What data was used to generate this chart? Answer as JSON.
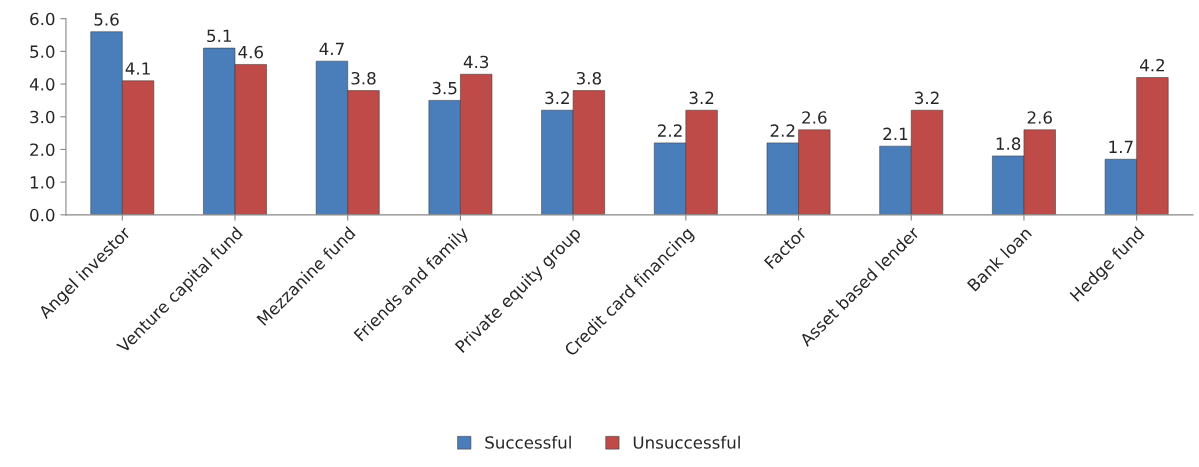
{
  "chart_data": {
    "type": "bar",
    "categories": [
      "Angel investor",
      "Venture capital fund",
      "Mezzanine fund",
      "Friends and family",
      "Private equity group",
      "Credit card financing",
      "Factor",
      "Asset based lender",
      "Bank loan",
      "Hedge fund"
    ],
    "series": [
      {
        "name": "Successful",
        "color": "#4a7ebb",
        "values": [
          5.6,
          5.1,
          4.7,
          3.5,
          3.2,
          2.2,
          2.2,
          2.1,
          1.8,
          1.7
        ]
      },
      {
        "name": "Unsuccessful",
        "color": "#be4b48",
        "values": [
          4.1,
          4.6,
          3.8,
          4.3,
          3.8,
          3.2,
          2.6,
          3.2,
          2.6,
          4.2
        ]
      }
    ],
    "ylim": [
      0,
      6
    ],
    "yticks": [
      {
        "value": 0,
        "label": "0.0"
      },
      {
        "value": 1,
        "label": "1.0"
      },
      {
        "value": 2,
        "label": "2.0"
      },
      {
        "value": 3,
        "label": "3.0"
      },
      {
        "value": 4,
        "label": "4.0"
      },
      {
        "value": 5,
        "label": "5.0"
      },
      {
        "value": 6,
        "label": "6.0"
      }
    ],
    "data_labels": true,
    "grid": false,
    "legend": "bottom"
  }
}
